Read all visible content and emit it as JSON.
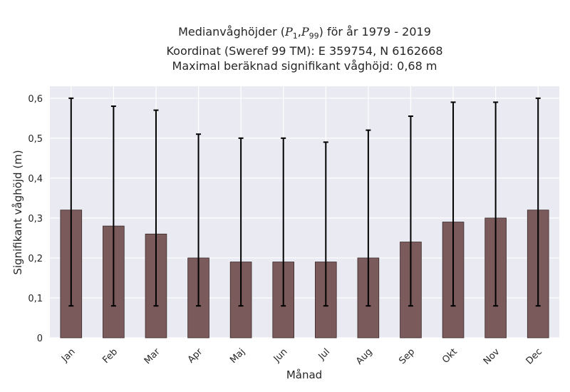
{
  "chart_data": {
    "type": "bar",
    "title_lines": [
      "Medianvåghöjder (P1,P99) för år 1979 - 2019",
      "Koordinat (Sweref 99 TM): E 359754, N 6162668",
      "Maximal beräknad signifikant våghöjd: 0,68 m"
    ],
    "title_parts": {
      "prefix": "Medianvåghöjder (",
      "p_symbol": "P",
      "p1_sub": "1",
      "separator": ",",
      "p99_sub": "99",
      "suffix": ") för år 1979 - 2019"
    },
    "xlabel": "Månad",
    "ylabel": "Signifikant våghöjd (m)",
    "categories": [
      "Jan",
      "Feb",
      "Mar",
      "Apr",
      "Maj",
      "Jun",
      "Jul",
      "Aug",
      "Sep",
      "Okt",
      "Nov",
      "Dec"
    ],
    "values": [
      0.32,
      0.28,
      0.26,
      0.2,
      0.19,
      0.19,
      0.19,
      0.2,
      0.24,
      0.29,
      0.3,
      0.32
    ],
    "p1": [
      0.08,
      0.08,
      0.08,
      0.08,
      0.08,
      0.08,
      0.08,
      0.08,
      0.08,
      0.08,
      0.08,
      0.08
    ],
    "p99": [
      0.6,
      0.58,
      0.57,
      0.51,
      0.5,
      0.5,
      0.49,
      0.52,
      0.555,
      0.59,
      0.59,
      0.6
    ],
    "ylim": [
      0,
      0.63
    ],
    "yticks": [
      0,
      0.1,
      0.2,
      0.3,
      0.4,
      0.5,
      0.6
    ],
    "ytick_labels": [
      "0",
      "0,1",
      "0,2",
      "0,3",
      "0,4",
      "0,5",
      "0,6"
    ],
    "grid": true,
    "colors": {
      "bar": "#7a5a5a",
      "bar_edge": "#3a2a2a",
      "error": "#000000",
      "plot_bg": "#eaeaf2",
      "grid": "#ffffff"
    }
  }
}
